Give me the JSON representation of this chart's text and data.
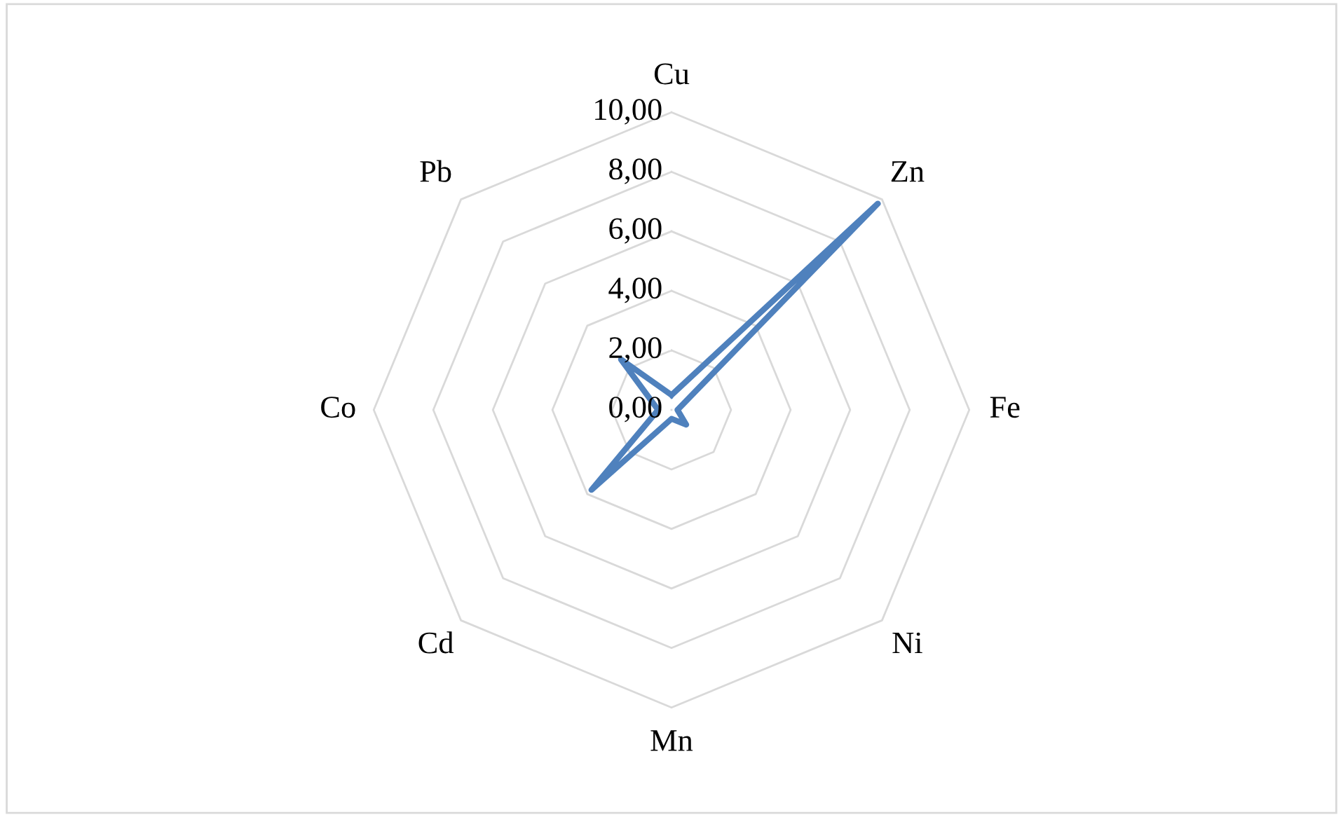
{
  "chart_data": {
    "type": "radar",
    "categories": [
      "Cu",
      "Zn",
      "Fe",
      "Ni",
      "Mn",
      "Cd",
      "Co",
      "Pb"
    ],
    "series": [
      {
        "color": "#4f81bd",
        "values": [
          0.5,
          9.8,
          0.2,
          0.7,
          0.3,
          3.8,
          0.45,
          2.4
        ]
      }
    ],
    "ylim": [
      0,
      10
    ],
    "yticks": [
      {
        "value": 0,
        "label": "0,00"
      },
      {
        "value": 2,
        "label": "2,00"
      },
      {
        "value": 4,
        "label": "4,00"
      },
      {
        "value": 6,
        "label": "6,00"
      },
      {
        "value": 8,
        "label": "8,00"
      },
      {
        "value": 10,
        "label": "10,00"
      }
    ],
    "grid": true,
    "marker": "none",
    "line_style": "solid",
    "legend": false
  }
}
